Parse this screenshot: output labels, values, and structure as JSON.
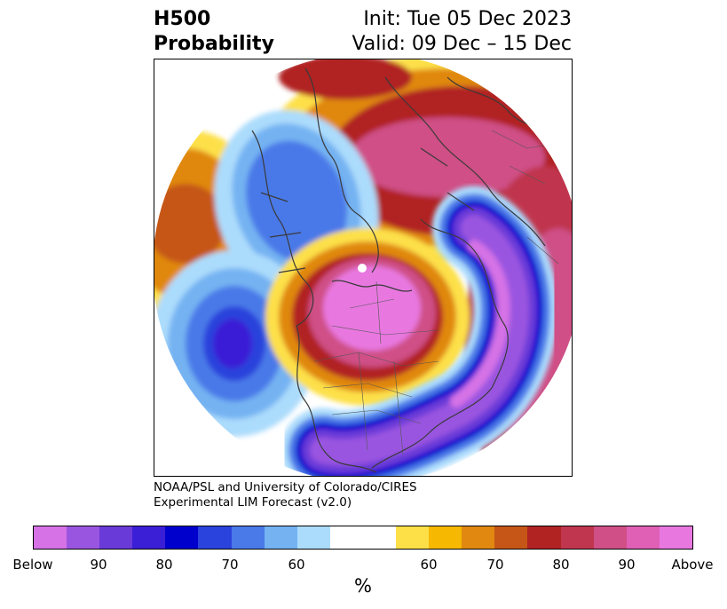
{
  "title": {
    "left_line1": "H500",
    "left_line2": "Probability",
    "right_line1": "Init: Tue 05 Dec 2023",
    "right_line2": "Valid: 09 Dec – 15 Dec"
  },
  "credit": {
    "line1": "NOAA/PSL and University of Colorado/CIRES",
    "line2": "Experimental LIM Forecast (v2.0)"
  },
  "colorbar": {
    "colors": [
      "#d672e6",
      "#9a55e0",
      "#6a3ad8",
      "#3a1fd6",
      "#0000cd",
      "#2a43dc",
      "#4a79e8",
      "#74b2f2",
      "#acdcfc",
      "#ffffff",
      "#ffffff",
      "#fde048",
      "#f6b800",
      "#e08810",
      "#c55617",
      "#b12323",
      "#c0364e",
      "#cf4f86",
      "#e060b6",
      "#e878e0"
    ],
    "ticks": [
      "Below",
      "90",
      "80",
      "70",
      "60",
      "60",
      "70",
      "80",
      "90",
      "Above"
    ],
    "unit": "%"
  },
  "palette": {
    "below3": "#d672e6",
    "below2": "#6a3ad8",
    "below1": "#0000cd",
    "below0": "#4a79e8",
    "belowl": "#acdcfc",
    "above0": "#fde048",
    "above1": "#e08810",
    "above2": "#b12323",
    "above3": "#cf4f86",
    "above4": "#e878e0"
  }
}
